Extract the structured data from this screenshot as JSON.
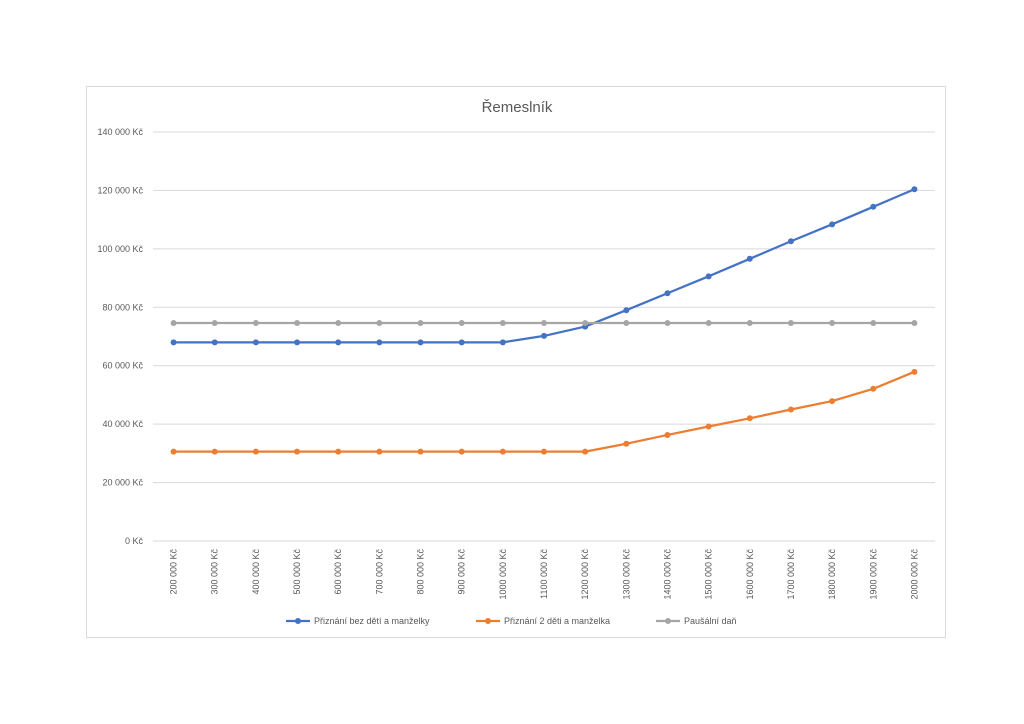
{
  "chart_data": {
    "type": "line",
    "title": "Řemeslník",
    "xlabel": "",
    "ylabel": "",
    "categories": [
      "200 000 Kč",
      "300 000 Kč",
      "400 000 Kč",
      "500 000 Kč",
      "600 000 Kč",
      "700 000 Kč",
      "800 000 Kč",
      "900 000 Kč",
      "1000 000 Kč",
      "1100 000 Kč",
      "1200 000 Kč",
      "1300 000 Kč",
      "1400 000 Kč",
      "1500 000 Kč",
      "1600 000 Kč",
      "1700 000 Kč",
      "1800 000 Kč",
      "1900 000 Kč",
      "2000 000 Kč"
    ],
    "ylim": [
      0,
      140000
    ],
    "yticks": [
      0,
      20000,
      40000,
      60000,
      80000,
      100000,
      120000,
      140000
    ],
    "ytick_labels": [
      "0 Kč",
      "20 000 Kč",
      "40 000 Kč",
      "60 000 Kč",
      "80 000 Kč",
      "100 000 Kč",
      "120 000 Kč",
      "140 000 Kč"
    ],
    "grid": true,
    "legend_position": "bottom",
    "series": [
      {
        "name": "Přiznání bez dětí a manželky",
        "color": "#4472c4",
        "values": [
          68000,
          68000,
          68000,
          68000,
          68000,
          68000,
          68000,
          68000,
          68000,
          70200,
          73400,
          79000,
          84800,
          90600,
          96600,
          102600,
          108400,
          114400,
          120400
        ]
      },
      {
        "name": "Přiznání 2 děti a manželka",
        "color": "#ed7d31",
        "values": [
          30600,
          30600,
          30600,
          30600,
          30600,
          30600,
          30600,
          30600,
          30600,
          30600,
          30600,
          33300,
          36300,
          39200,
          42000,
          45000,
          47900,
          52100,
          57900
        ]
      },
      {
        "name": "Paušální daň",
        "color": "#a5a5a5",
        "values": [
          74600,
          74600,
          74600,
          74600,
          74600,
          74600,
          74600,
          74600,
          74600,
          74600,
          74600,
          74600,
          74600,
          74600,
          74600,
          74600,
          74600,
          74600,
          74600
        ]
      }
    ]
  }
}
